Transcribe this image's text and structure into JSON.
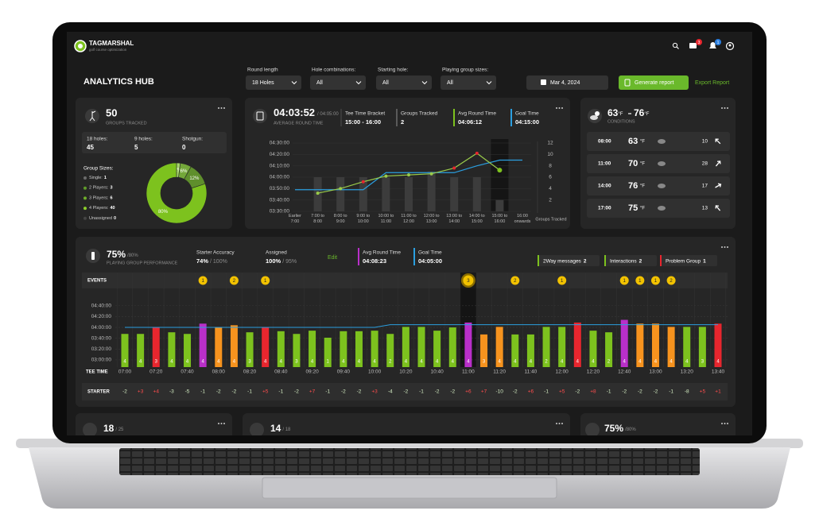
{
  "header": {
    "brand": "TAGMARSHAL",
    "tagline": "golf course optimization",
    "title": "ANALYTICS HUB",
    "mail_badge": "3",
    "bell_badge": "1"
  },
  "filters": [
    {
      "label": "Round length",
      "value": "18 Holes"
    },
    {
      "label": "Hole combinations:",
      "value": "All"
    },
    {
      "label": "Starting hole:",
      "value": "All"
    },
    {
      "label": "Playing group sizes:",
      "value": "All"
    }
  ],
  "date": "Mar 4, 2024",
  "generate_button": "Generate report",
  "export_link": "Export Report",
  "groups_card": {
    "value": "50",
    "caption": "GROUPS TRACKED",
    "stats": [
      {
        "label": "18 holes:",
        "value": "45"
      },
      {
        "label": "9 holes:",
        "value": "5"
      },
      {
        "label": "Shotgun:",
        "value": "0"
      }
    ],
    "sizes_title": "Group Sizes:",
    "sizes": [
      {
        "label": "Single:",
        "value": "1",
        "color": "#6b6b6b"
      },
      {
        "label": "2 Players:",
        "value": "3",
        "color": "#5f9a2a"
      },
      {
        "label": "3 Players:",
        "value": "6",
        "color": "#6fae2a"
      },
      {
        "label": "4 Players:",
        "value": "40",
        "color": "#8cd02a"
      },
      {
        "label": "Unassigned",
        "value": "0",
        "color": "#444444"
      }
    ],
    "donut": {
      "values": [
        2,
        6,
        12,
        80
      ],
      "value_labels": [
        "2%",
        "6%",
        "12%",
        "80%"
      ],
      "colors": [
        "#a5d46a",
        "#74a83a",
        "#5f8f2c",
        "#7dc21e"
      ]
    }
  },
  "round_card": {
    "value": "04:03:52",
    "goal": "/ 04:05:00",
    "caption": "AVERAGE ROUND TIME",
    "stats": [
      {
        "label": "Tee Time Bracket",
        "value": "15:00 - 16:00",
        "color": "#3a3a3a"
      },
      {
        "label": "Groups Tracked",
        "value": "2",
        "color": "#5a5a5a"
      },
      {
        "label": "Avg Round Time",
        "value": "04:06:12",
        "color": "#7dc21e"
      },
      {
        "label": "Goal Time",
        "value": "04:15:00",
        "color": "#2b9fe0"
      }
    ],
    "chart": {
      "categories": [
        [
          "Earlier",
          "7:00"
        ],
        [
          "7:00 to",
          "8:00"
        ],
        [
          "8:00 to",
          "9:00"
        ],
        [
          "9:00 to",
          "10:00"
        ],
        [
          "10:00 to",
          "11:00"
        ],
        [
          "11:00 to",
          "12:00"
        ],
        [
          "12:00 to",
          "13:00"
        ],
        [
          "13:00 to",
          "14:00"
        ],
        [
          "14:00 to",
          "15:00"
        ],
        [
          "15:00 to",
          "16:00"
        ],
        [
          "16:00",
          "onwards"
        ]
      ],
      "ylim": [
        12600,
        16200
      ],
      "yticks": [
        {
          "value": 16200,
          "label": "04:30:00"
        },
        {
          "value": 15600,
          "label": "04:20:00"
        },
        {
          "value": 15000,
          "label": "04:10:00"
        },
        {
          "value": 14400,
          "label": "04:00:00"
        },
        {
          "value": 13800,
          "label": "03:50:00"
        },
        {
          "value": 13200,
          "label": "03:40:00"
        },
        {
          "value": 12600,
          "label": "03:30:00"
        }
      ],
      "y2lim": [
        0,
        12
      ],
      "y2ticks": [
        12,
        10,
        8,
        6,
        4,
        2
      ],
      "y2label": "Groups Tracked",
      "selected_index": 9,
      "series": [
        {
          "type": "bar",
          "axis": "y2",
          "color": "#3c3c3c",
          "values": [
            null,
            6,
            6,
            6,
            6,
            6,
            7,
            6,
            6,
            2,
            null
          ]
        },
        {
          "type": "line",
          "color": "#2b9fe0",
          "values": [
            13740,
            13740,
            13740,
            13740,
            14640,
            14640,
            14640,
            14640,
            15000,
            15300,
            15300
          ]
        },
        {
          "type": "line",
          "color": "#9acb4a",
          "values": [
            null,
            13560,
            13800,
            14160,
            14460,
            14520,
            14580,
            14880,
            15660,
            14772,
            null
          ],
          "point_colors": [
            null,
            "#9acb4a",
            "#9acb4a",
            "#e8262e",
            "#9acb4a",
            "#9acb4a",
            "#9acb4a",
            "#e8262e",
            "#e8262e",
            "#7dc21e",
            null
          ]
        }
      ]
    }
  },
  "weather_card": {
    "low": "63",
    "high": "76",
    "unit": "°F",
    "caption": "CONDITIONS",
    "rows": [
      {
        "time": "08:00",
        "temp": "63",
        "wind": "10"
      },
      {
        "time": "11:00",
        "temp": "70",
        "wind": "28"
      },
      {
        "time": "14:00",
        "temp": "76",
        "wind": "17"
      },
      {
        "time": "17:00",
        "temp": "75",
        "wind": "13"
      }
    ]
  },
  "performance_card": {
    "value": "75%",
    "target": "/80%",
    "caption": "PLAYING GROUP PERFORMANCE",
    "stats": [
      {
        "label": "Starter Accuracy",
        "value": "74%",
        "target": "/ 100%"
      },
      {
        "label": "Assigned",
        "value": "100%",
        "target": "/ 95%"
      }
    ],
    "edit": "Edit",
    "times": [
      {
        "label": "Avg Round Time",
        "value": "04:08:23",
        "color": "#b92fc9"
      },
      {
        "label": "Goal Time",
        "value": "04:05:00",
        "color": "#2b9fe0"
      }
    ],
    "counters": [
      {
        "label": "2Way messages",
        "value": "2",
        "color": "#7dc21e"
      },
      {
        "label": "Interactions",
        "value": "2",
        "color": "#7dc21e"
      },
      {
        "label": "Problem Group",
        "value": "1",
        "color": "#e8262e"
      }
    ],
    "events_label": "EVENTS",
    "events": [
      null,
      null,
      null,
      null,
      null,
      1,
      null,
      2,
      null,
      1,
      null,
      null,
      null,
      null,
      null,
      null,
      null,
      null,
      null,
      null,
      null,
      null,
      3,
      null,
      null,
      2,
      null,
      null,
      1,
      null,
      null,
      null,
      1,
      1,
      1,
      2,
      null,
      null,
      null
    ],
    "chart": {
      "x_label": "TEE TIME",
      "selected_index": 22,
      "ylim": [
        10000,
        17400
      ],
      "yticks": [
        {
          "value": 16800,
          "label": "04:40:00"
        },
        {
          "value": 15600,
          "label": "04:20:00"
        },
        {
          "value": 14400,
          "label": "04:00:00"
        },
        {
          "value": 13200,
          "label": "03:40:00"
        },
        {
          "value": 12000,
          "label": "03:20:00"
        },
        {
          "value": 10800,
          "label": "03:00:00"
        }
      ],
      "categories": [
        "07:00",
        null,
        "07:20",
        null,
        "07:40",
        null,
        "08:00",
        null,
        "08:20",
        null,
        "08:40",
        null,
        "09:20",
        null,
        "09:40",
        null,
        "10:00",
        null,
        "10:20",
        null,
        "10:40",
        null,
        "11:00",
        null,
        "11:20",
        null,
        "11:40",
        null,
        "12:00",
        null,
        "12:20",
        null,
        "12:40",
        null,
        "13:00",
        null,
        "13:20",
        null,
        "13:40"
      ],
      "values": [
        13680,
        13680,
        14400,
        13860,
        13680,
        14820,
        14400,
        14640,
        13860,
        14400,
        13980,
        13680,
        14040,
        13260,
        13980,
        13980,
        14040,
        13680,
        14460,
        14460,
        14040,
        14400,
        14940,
        13620,
        14460,
        13620,
        13620,
        14460,
        14460,
        14940,
        14040,
        13860,
        15240,
        14820,
        14820,
        14460,
        14460,
        14460,
        14820
      ],
      "colors": [
        "#7dc21e",
        "#7dc21e",
        "#e8262e",
        "#7dc21e",
        "#7dc21e",
        "#b92fc9",
        "#f7931e",
        "#f7931e",
        "#7dc21e",
        "#e8262e",
        "#7dc21e",
        "#7dc21e",
        "#7dc21e",
        "#7dc21e",
        "#7dc21e",
        "#7dc21e",
        "#7dc21e",
        "#7dc21e",
        "#7dc21e",
        "#7dc21e",
        "#7dc21e",
        "#7dc21e",
        "#b92fc9",
        "#f7931e",
        "#f7931e",
        "#7dc21e",
        "#7dc21e",
        "#7dc21e",
        "#7dc21e",
        "#e8262e",
        "#7dc21e",
        "#7dc21e",
        "#b92fc9",
        "#f7931e",
        "#f7931e",
        "#f7931e",
        "#7dc21e",
        "#7dc21e",
        "#e8262e"
      ],
      "players": [
        4,
        4,
        3,
        4,
        4,
        4,
        4,
        4,
        3,
        4,
        4,
        3,
        4,
        1,
        4,
        4,
        4,
        2,
        4,
        4,
        4,
        4,
        4,
        3,
        4,
        4,
        4,
        2,
        4,
        4,
        4,
        2,
        4,
        4,
        4,
        4,
        4,
        3,
        4
      ],
      "goal_color": "#2b9fe0",
      "goal": [
        14400,
        14400,
        14400,
        14400,
        14400,
        14400,
        14400,
        14400,
        14400,
        14400,
        14400,
        14400,
        14400,
        14400,
        14400,
        14400,
        14400,
        14700,
        14700,
        14700,
        14700,
        14700,
        14700,
        14700,
        14700,
        14700,
        14700,
        14700,
        14700,
        14700,
        14700,
        14700,
        14700,
        14700,
        14700,
        14700,
        14700,
        14700,
        14700
      ]
    },
    "starter_label": "STARTER",
    "starter": [
      "-2",
      "+3",
      "+4",
      "-3",
      "-5",
      "-1",
      "-2",
      "-2",
      "-1",
      "+5",
      "-1",
      "-2",
      "+7",
      "-1",
      "-2",
      "-2",
      "+3",
      "-4",
      "-2",
      "-1",
      "-2",
      "-2",
      "+6",
      "+7",
      "-10",
      "-2",
      "+6",
      "-1",
      "+5",
      "-2",
      "+8",
      "-1",
      "-2",
      "-2",
      "-2",
      "-1",
      "-8",
      "+5",
      "+1"
    ]
  },
  "bottom_cards": [
    {
      "value": "18",
      "target": "/ 25"
    },
    {
      "value": "14",
      "target": "/ 18"
    },
    {
      "value": "75%",
      "target": "/80%"
    }
  ]
}
